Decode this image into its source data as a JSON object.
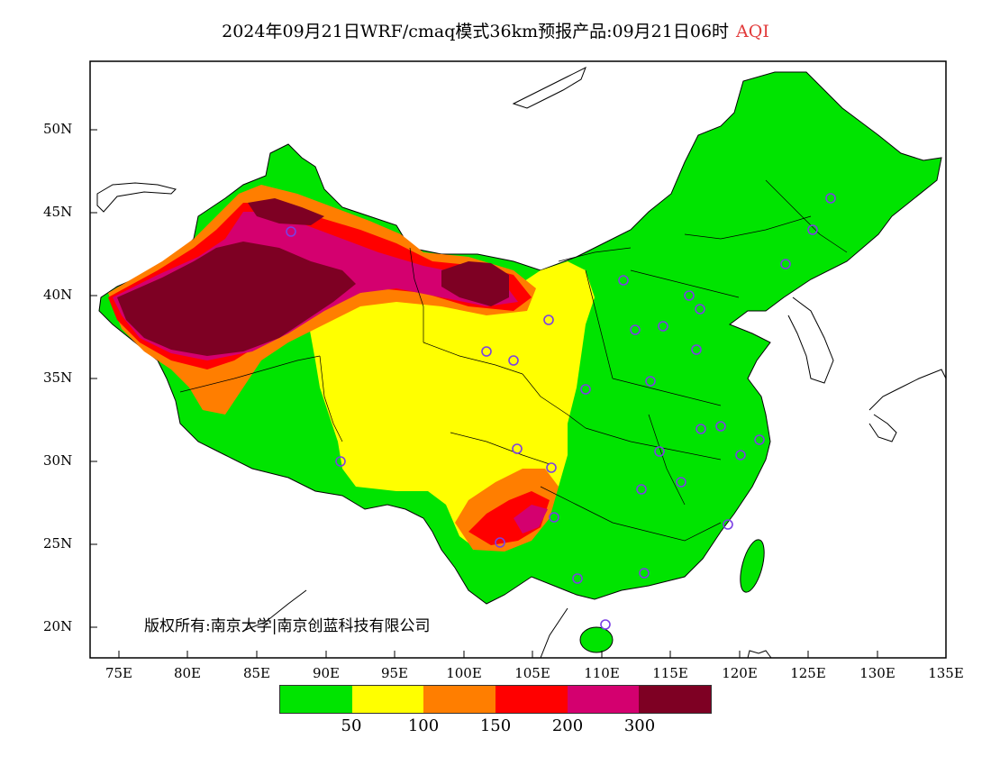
{
  "title": {
    "main": "2024年09月21日WRF/cmaq模式36km预报产品:09月21日06时",
    "variable": "AQI",
    "variable_color": "#e23b3b"
  },
  "axes": {
    "y_labels": [
      "50N",
      "45N",
      "40N",
      "35N",
      "30N",
      "25N",
      "20N"
    ],
    "x_labels": [
      "75E",
      "80E",
      "85E",
      "90E",
      "95E",
      "100E",
      "105E",
      "110E",
      "115E",
      "120E",
      "125E",
      "130E",
      "135E"
    ]
  },
  "legend": {
    "colors": [
      "#00e400",
      "#ffff00",
      "#ff7e00",
      "#ff0000",
      "#d4006f",
      "#7e0023"
    ],
    "thresholds": [
      "50",
      "100",
      "150",
      "200",
      "300"
    ]
  },
  "copyright": "版权所有:南京大学|南京创蓝科技有限公司",
  "colors": {
    "land_outside": "#ffffff",
    "station_marker": "#7b3fe4",
    "border": "#000000"
  }
}
